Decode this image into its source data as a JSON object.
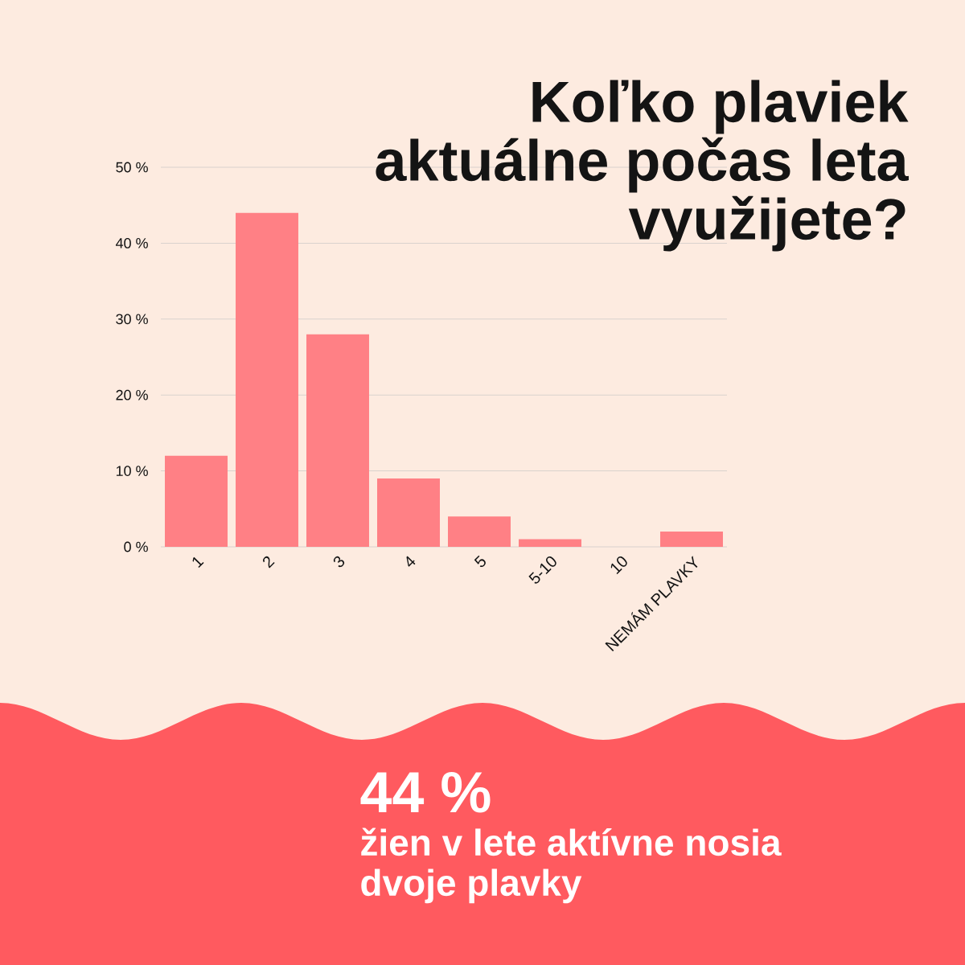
{
  "chart_data": {
    "type": "bar",
    "title": "Koľko plaviek aktuálne počas leta využijete?",
    "categories": [
      "1",
      "2",
      "3",
      "4",
      "5",
      "5-10",
      "10",
      "NEMÁM PLAVKY"
    ],
    "values": [
      12,
      44,
      28,
      9,
      4,
      1,
      0,
      2
    ],
    "color": "#ff8085",
    "ylim": [
      0,
      50
    ],
    "yticks": [
      {
        "value": 0,
        "label": "0 %"
      },
      {
        "value": 10,
        "label": "10 %"
      },
      {
        "value": 20,
        "label": "20 %"
      },
      {
        "value": 30,
        "label": "30 %"
      },
      {
        "value": 40,
        "label": "40 %"
      },
      {
        "value": 50,
        "label": "50 %"
      }
    ],
    "grid": "y",
    "annotations": [
      "44 %",
      "žien v lete aktívne nosia dvoje plavky"
    ]
  }
}
